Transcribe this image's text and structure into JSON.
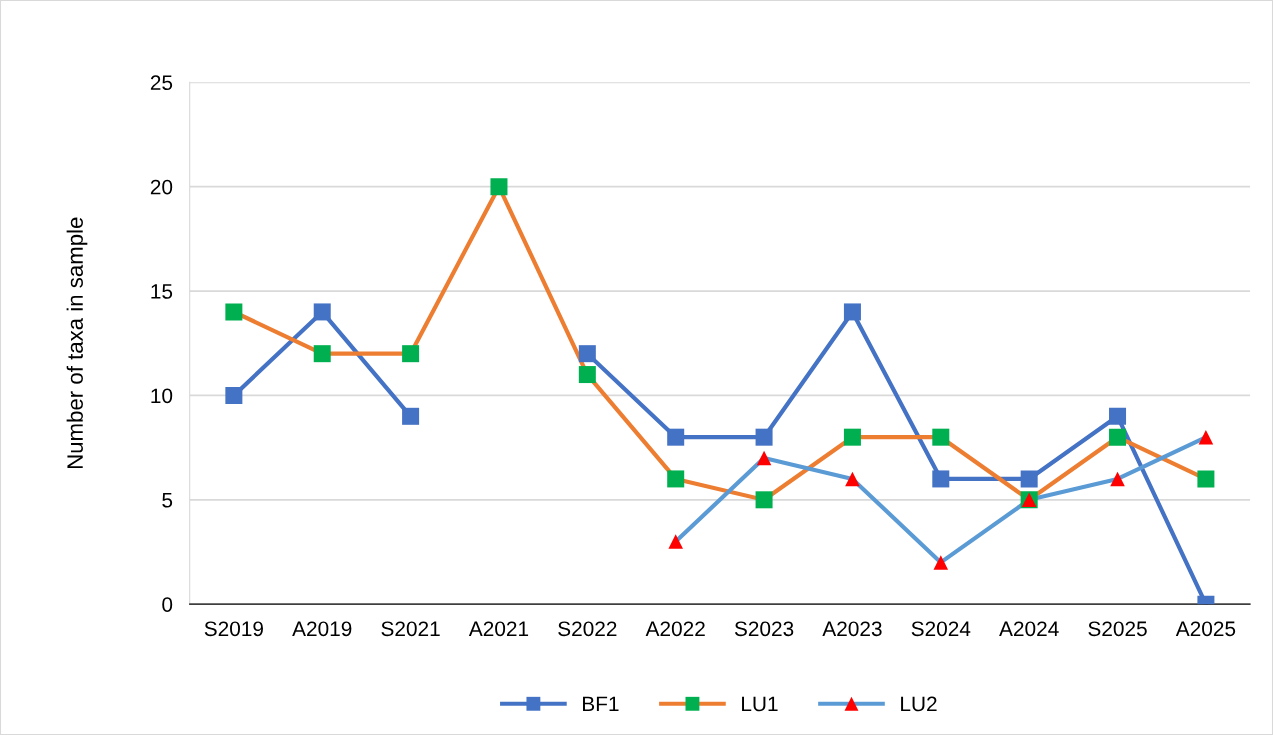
{
  "chart_data": {
    "type": "line",
    "ylabel": "Number of taxa in sample",
    "categories": [
      "S2019",
      "A2019",
      "S2021",
      "A2021",
      "S2022",
      "A2022",
      "S2023",
      "A2023",
      "S2024",
      "A2024",
      "S2025",
      "A2025"
    ],
    "series": [
      {
        "name": "BF1",
        "color": "#4472c4",
        "marker": "square",
        "colors": [
          "#4472c4",
          "#4472c4",
          "#4472c4",
          "#4472c4",
          "#4472c4",
          "#4472c4",
          "#4472c4",
          "#4472c4",
          "#4472c4",
          "#4472c4",
          "#4472c4",
          "#4472c4"
        ],
        "values": [
          10,
          14,
          9,
          null,
          12,
          8,
          8,
          14,
          6,
          6,
          9,
          0
        ]
      },
      {
        "name": "LU1",
        "color": "#ed7d31",
        "marker": "square",
        "colors": [
          "#00b050",
          "#00b050",
          "#00b050",
          "#00b050",
          "#00b050",
          "#00b050",
          "#00b050",
          "#00b050",
          "#00b050",
          "#00b050",
          "#00b050",
          "#00b050"
        ],
        "values": [
          14,
          12,
          12,
          20,
          11,
          6,
          5,
          8,
          8,
          5,
          8,
          6
        ]
      },
      {
        "name": "LU2",
        "color": "#5b9bd5",
        "marker": "triangle",
        "colors": [
          "#ff0000",
          "#ff0000",
          "#ff0000",
          "#ff0000",
          "#ff0000",
          "#ff0000",
          "#ff0000",
          "#ff0000",
          "#ff0000",
          "#ff0000",
          "#ff0000",
          "#ff0000"
        ],
        "values": [
          null,
          null,
          null,
          null,
          null,
          3,
          7,
          6,
          2,
          5,
          6,
          8
        ]
      }
    ],
    "ylim": [
      0,
      25
    ],
    "yticks": [
      0,
      5,
      10,
      15,
      20,
      25
    ],
    "grid": "y",
    "legend": "bottom",
    "line_style": "solid"
  }
}
